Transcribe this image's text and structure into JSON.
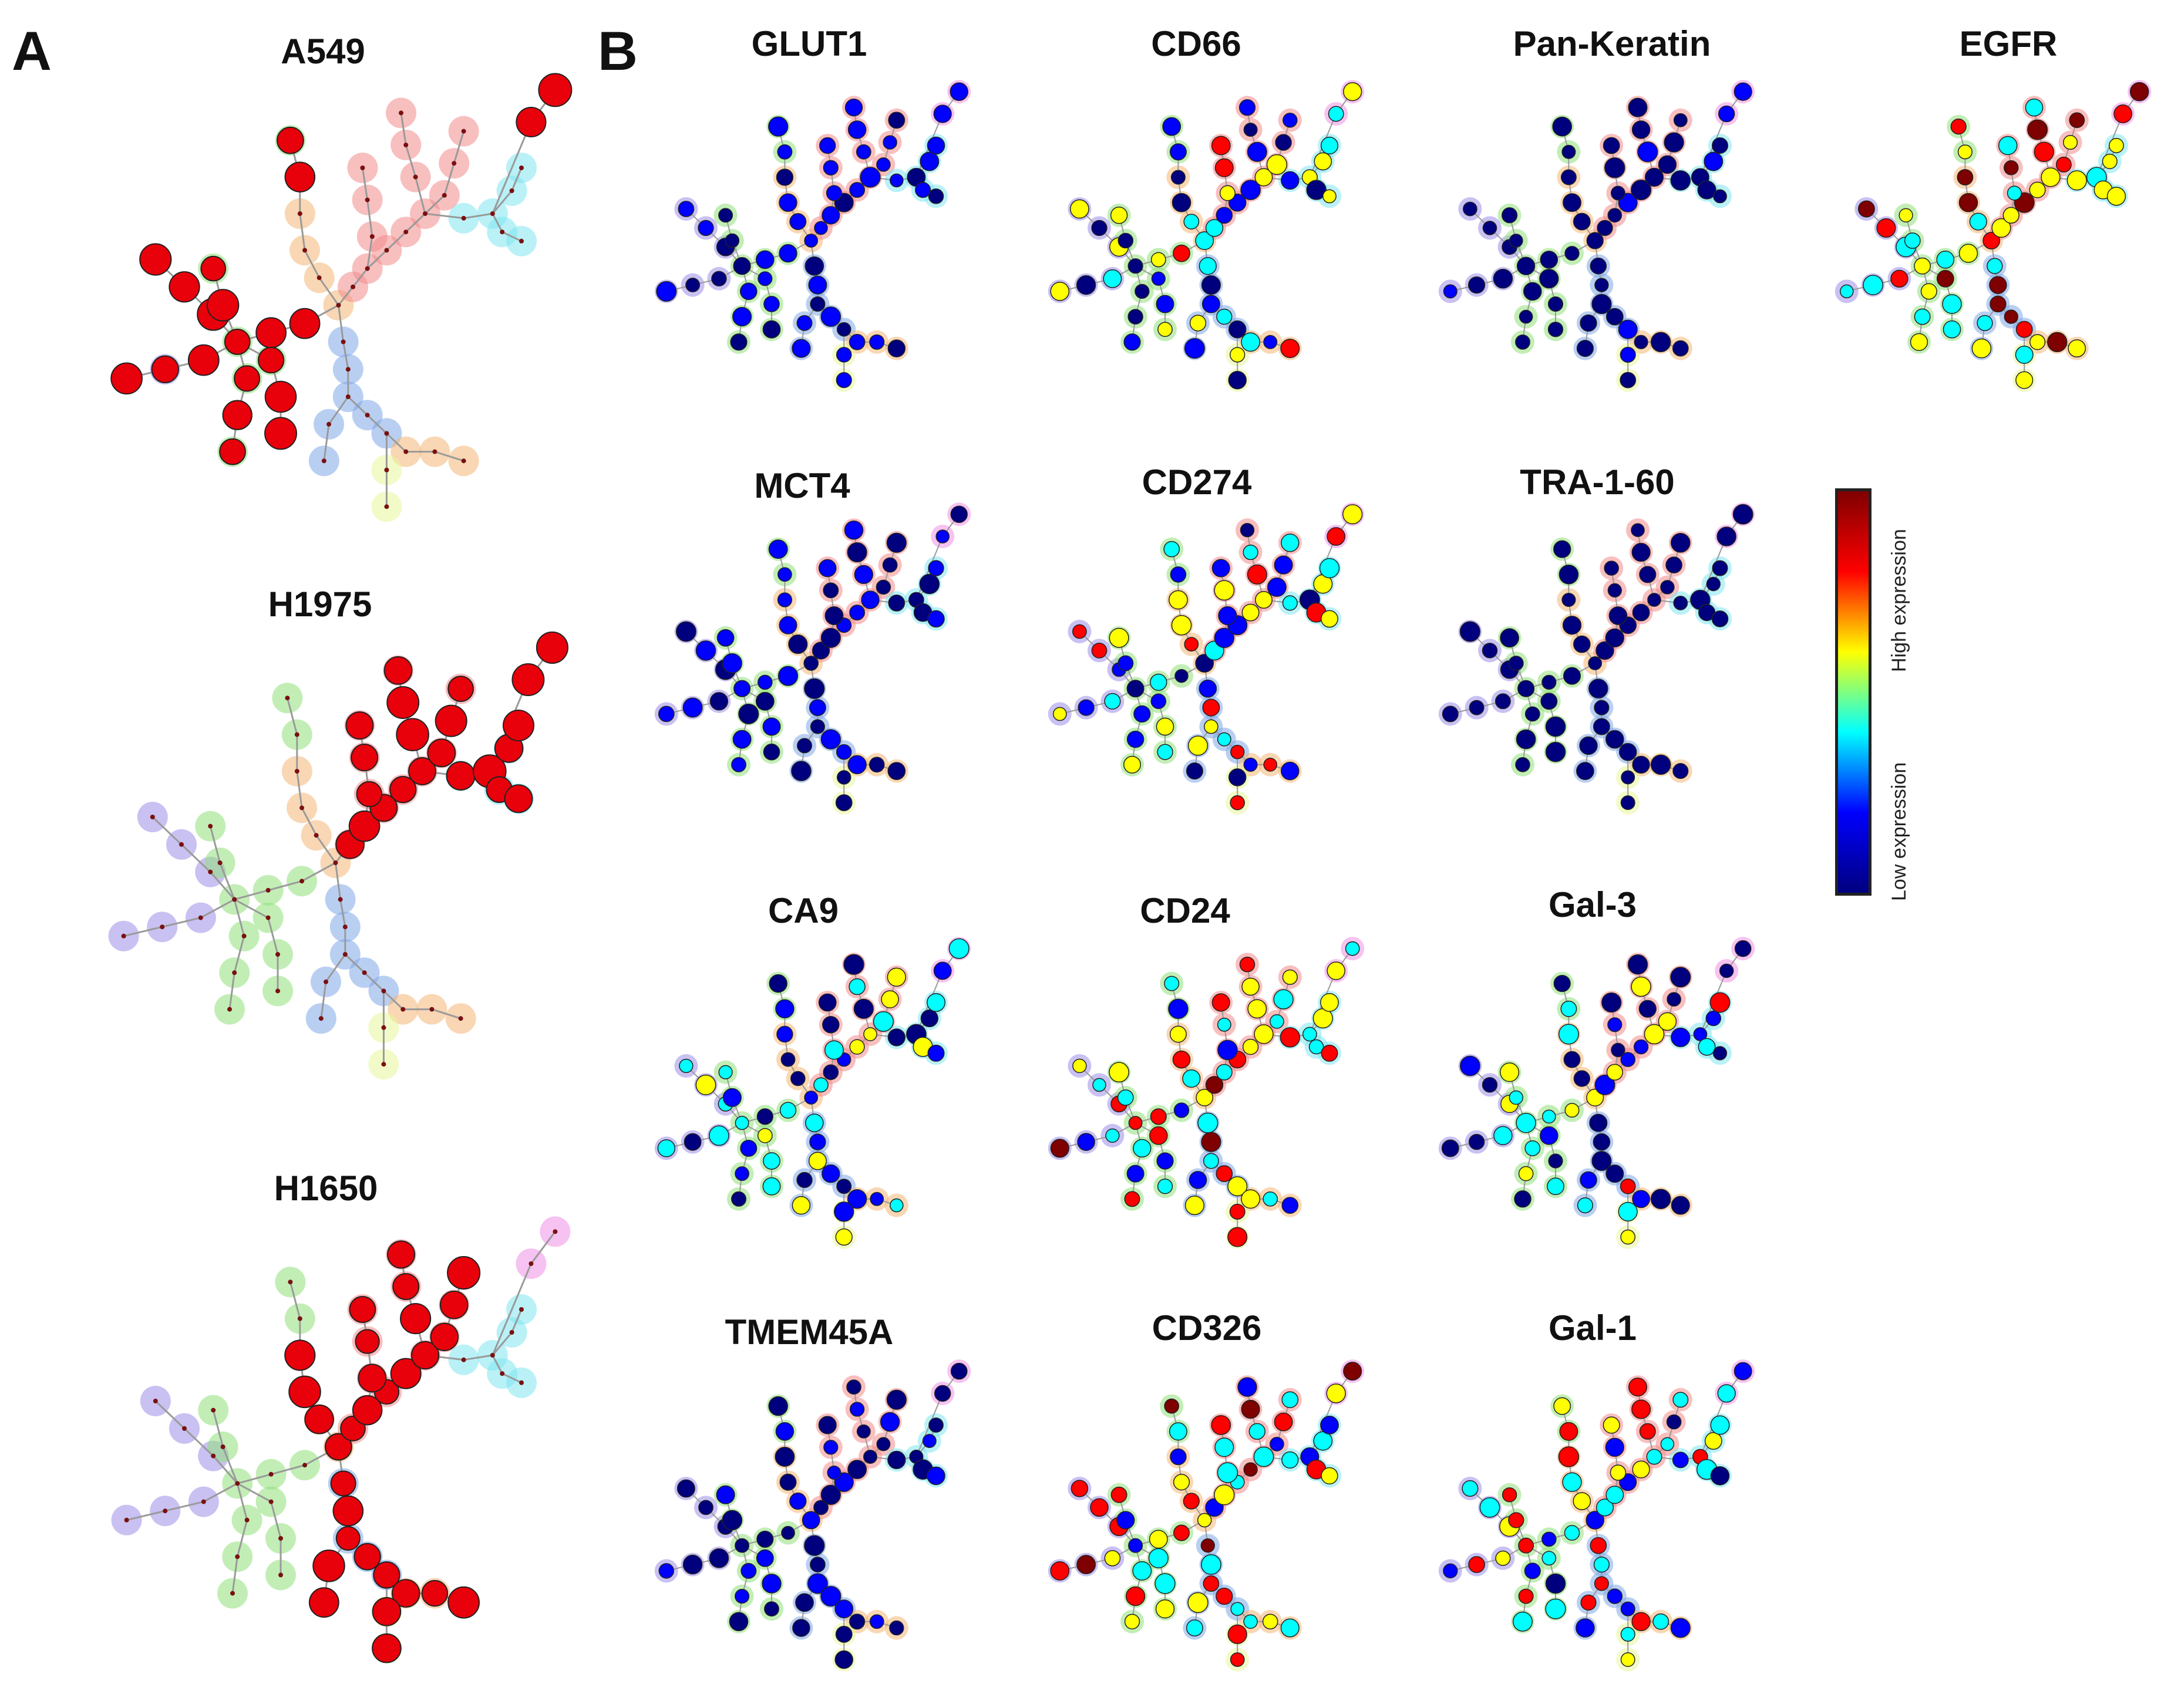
{
  "figure": {
    "panel_a_label": "A",
    "panel_b_label": "B",
    "panel_a_titles": [
      "A549",
      "H1975",
      "H1650"
    ],
    "marker_titles": [
      "GLUT1",
      "CD66",
      "Pan-Keratin",
      "EGFR",
      "MCT4",
      "CD274",
      "TRA-1-60",
      "CA9",
      "CD24",
      "Gal-3",
      "TMEM45A",
      "CD326",
      "Gal-1"
    ],
    "colorbar": {
      "high_label": "High expression",
      "low_label": "Low expression",
      "colors": [
        "#00007f",
        "#0000ff",
        "#00ffff",
        "#ffff00",
        "#ff0000",
        "#7f0000"
      ]
    },
    "highlight_color": "#e8000b"
  }
}
